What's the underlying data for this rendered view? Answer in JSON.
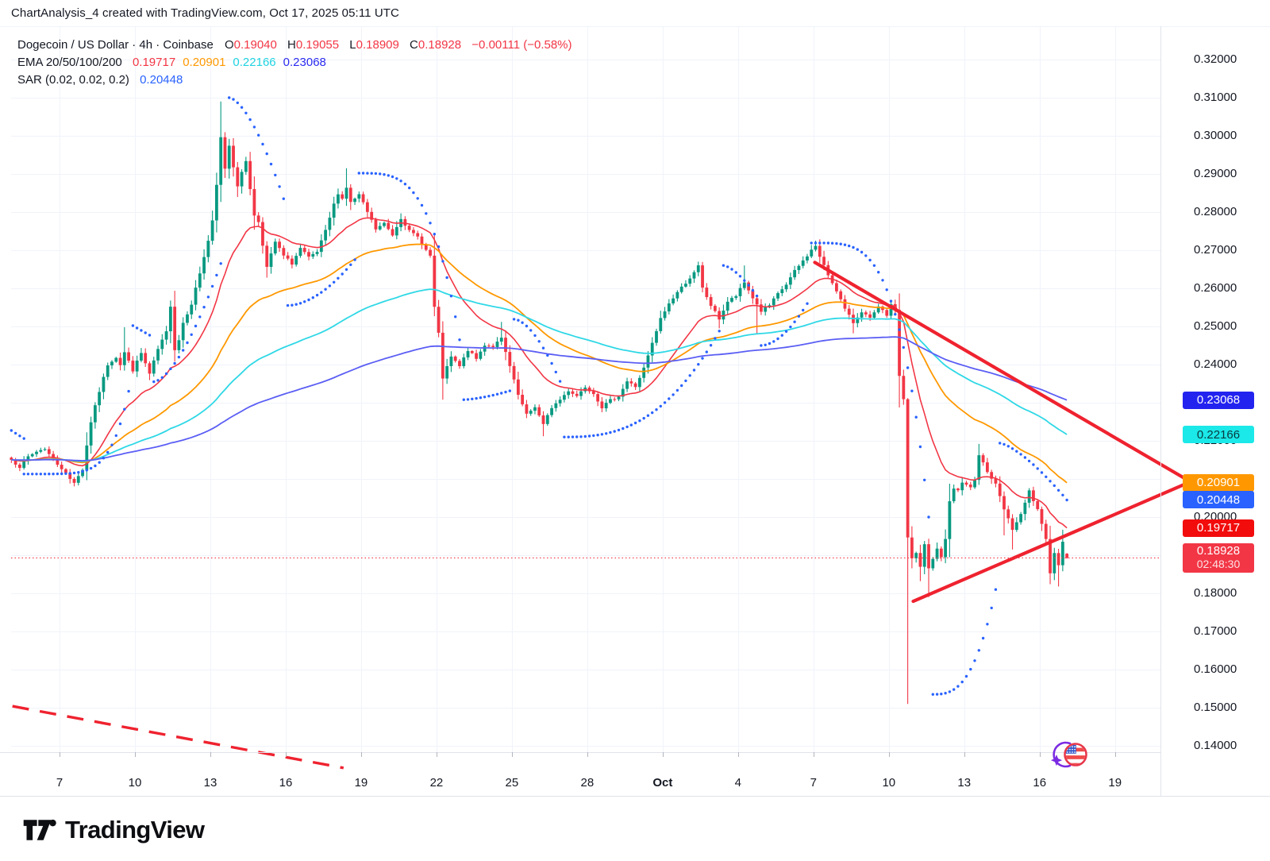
{
  "watermark": "ChartAnalysis_4 created with TradingView.com, Oct 17, 2025 05:11 UTC",
  "legend": {
    "symbol": "Dogecoin / US Dollar · 4h · Coinbase",
    "ohlc": {
      "o_label": "O",
      "o": "0.19040",
      "h_label": "H",
      "h": "0.19055",
      "l_label": "L",
      "l": "0.18909",
      "c_label": "C",
      "c": "0.18928",
      "change": "−0.00111 (−0.58%)"
    },
    "ema": {
      "label": "EMA 20/50/100/200",
      "values": [
        {
          "text": "0.19717",
          "color": "#f23645"
        },
        {
          "text": "0.20901",
          "color": "#ff9800"
        },
        {
          "text": "0.22166",
          "color": "#1fd3e0"
        },
        {
          "text": "0.23068",
          "color": "#2a2af0"
        }
      ]
    },
    "sar": {
      "label": "SAR (0.02, 0.02, 0.2)",
      "value": "0.20448",
      "color": "#2962ff"
    }
  },
  "logo": {
    "text": "TradingView"
  },
  "icons": {
    "event_marker": "us-flag-event-icon",
    "sparkle": "sparkle-icon",
    "logo_mark": "tradingview-logo-icon"
  },
  "colors": {
    "bg": "#ffffff",
    "grid": "#f0f3fa",
    "axis_border": "#e0e3eb",
    "axis_text": "#131722",
    "up": "#089981",
    "down": "#f23645",
    "ema20": "#f23645",
    "ema50": "#ff9800",
    "ema100": "#2fd8e6",
    "ema200": "#5b5ef4",
    "sar": "#2962ff",
    "trend": "#ef222f",
    "last_price_line": "#f23645"
  },
  "y_axis": {
    "ticks": [
      {
        "text": "0.32000",
        "price": 0.32
      },
      {
        "text": "0.31000",
        "price": 0.31
      },
      {
        "text": "0.30000",
        "price": 0.3
      },
      {
        "text": "0.29000",
        "price": 0.29
      },
      {
        "text": "0.28000",
        "price": 0.28
      },
      {
        "text": "0.27000",
        "price": 0.27
      },
      {
        "text": "0.26000",
        "price": 0.26
      },
      {
        "text": "0.25000",
        "price": 0.25
      },
      {
        "text": "0.24000",
        "price": 0.24
      },
      {
        "text": "0.23000",
        "price": 0.23
      },
      {
        "text": "0.22000",
        "price": 0.22
      },
      {
        "text": "0.21000",
        "price": 0.21
      },
      {
        "text": "0.20000",
        "price": 0.2
      },
      {
        "text": "0.19000",
        "price": 0.19
      },
      {
        "text": "0.18000",
        "price": 0.18
      },
      {
        "text": "0.17000",
        "price": 0.17
      },
      {
        "text": "0.16000",
        "price": 0.16
      },
      {
        "text": "0.15000",
        "price": 0.15
      },
      {
        "text": "0.14000",
        "price": 0.14
      }
    ]
  },
  "x_axis": {
    "labels": [
      {
        "text": "7",
        "day": 2
      },
      {
        "text": "10",
        "day": 5
      },
      {
        "text": "13",
        "day": 8
      },
      {
        "text": "16",
        "day": 11
      },
      {
        "text": "19",
        "day": 14
      },
      {
        "text": "22",
        "day": 17
      },
      {
        "text": "25",
        "day": 20
      },
      {
        "text": "28",
        "day": 23
      },
      {
        "text": "Oct",
        "day": 26,
        "bold": true
      },
      {
        "text": "4",
        "day": 29
      },
      {
        "text": "7",
        "day": 32
      },
      {
        "text": "10",
        "day": 35
      },
      {
        "text": "13",
        "day": 38
      },
      {
        "text": "16",
        "day": 41
      },
      {
        "text": "19",
        "day": 44
      }
    ]
  },
  "price_labels": [
    {
      "id": "ema200",
      "text": "0.23068",
      "price": 0.23068,
      "bg": "#2323f0",
      "fg": "#ffffff"
    },
    {
      "id": "ema100",
      "text": "0.22166",
      "price": 0.22166,
      "bg": "#1be8e8",
      "fg": "#093a40"
    },
    {
      "id": "ema50",
      "text": "0.20901",
      "price": 0.20901,
      "bg": "#ff9800",
      "fg": "#ffffff"
    },
    {
      "id": "sar",
      "text": "0.20448",
      "price": 0.20448,
      "bg": "#2962ff",
      "fg": "#ffffff"
    },
    {
      "id": "ema20",
      "text": "0.19717",
      "price": 0.19717,
      "bg": "#f20c0c",
      "fg": "#ffffff"
    },
    {
      "id": "last",
      "text": "0.18928",
      "sub": "02:48:30",
      "price": 0.18928,
      "bg": "#f23645",
      "fg": "#ffffff"
    }
  ],
  "chart_data": {
    "type": "candlestick",
    "title": "Dogecoin / US Dollar",
    "timeframe": "4h",
    "exchange": "Coinbase",
    "current_ohlc": {
      "open": 0.1904,
      "high": 0.19055,
      "low": 0.18909,
      "close": 0.18928,
      "change": -0.00111,
      "change_pct": -0.58
    },
    "countdown": "02:48:30",
    "ylim": [
      0.1383,
      0.3294
    ],
    "date_range": {
      "start": "Sep 5",
      "end": "Oct 19",
      "bars_per_day": 6
    },
    "bars_total": 253,
    "close_keyframes": [
      [
        0,
        0.215
      ],
      [
        2,
        0.2132
      ],
      [
        4,
        0.2158
      ],
      [
        6,
        0.2172
      ],
      [
        8,
        0.218
      ],
      [
        10,
        0.215
      ],
      [
        12,
        0.2128
      ],
      [
        14,
        0.21
      ],
      [
        15,
        0.2092
      ],
      [
        17,
        0.2125
      ],
      [
        19,
        0.225
      ],
      [
        21,
        0.233
      ],
      [
        23,
        0.24
      ],
      [
        25,
        0.242
      ],
      [
        26,
        0.24
      ],
      [
        27,
        0.2432
      ],
      [
        29,
        0.2385
      ],
      [
        31,
        0.243
      ],
      [
        33,
        0.2375
      ],
      [
        35,
        0.244
      ],
      [
        37,
        0.2485
      ],
      [
        38,
        0.2555
      ],
      [
        39,
        0.244
      ],
      [
        40,
        0.2465
      ],
      [
        41,
        0.251
      ],
      [
        43,
        0.256
      ],
      [
        45,
        0.264
      ],
      [
        47,
        0.2725
      ],
      [
        48,
        0.2775
      ],
      [
        49,
        0.287
      ],
      [
        50,
        0.2995
      ],
      [
        51,
        0.2915
      ],
      [
        52,
        0.2975
      ],
      [
        53,
        0.292
      ],
      [
        54,
        0.287
      ],
      [
        56,
        0.2935
      ],
      [
        58,
        0.279
      ],
      [
        59,
        0.2775
      ],
      [
        61,
        0.2655
      ],
      [
        63,
        0.2722
      ],
      [
        65,
        0.2685
      ],
      [
        67,
        0.2665
      ],
      [
        69,
        0.2705
      ],
      [
        71,
        0.268
      ],
      [
        73,
        0.2695
      ],
      [
        75,
        0.275
      ],
      [
        77,
        0.282
      ],
      [
        78,
        0.285
      ],
      [
        79,
        0.2835
      ],
      [
        80,
        0.2865
      ],
      [
        81,
        0.2825
      ],
      [
        83,
        0.2845
      ],
      [
        85,
        0.28
      ],
      [
        87,
        0.2755
      ],
      [
        89,
        0.277
      ],
      [
        91,
        0.274
      ],
      [
        93,
        0.2785
      ],
      [
        95,
        0.275
      ],
      [
        97,
        0.2735
      ],
      [
        99,
        0.27
      ],
      [
        100,
        0.2685
      ],
      [
        101,
        0.255
      ],
      [
        102,
        0.248
      ],
      [
        103,
        0.2365
      ],
      [
        105,
        0.242
      ],
      [
        107,
        0.2395
      ],
      [
        109,
        0.2438
      ],
      [
        111,
        0.2415
      ],
      [
        113,
        0.2452
      ],
      [
        115,
        0.2448
      ],
      [
        117,
        0.2468
      ],
      [
        119,
        0.2395
      ],
      [
        121,
        0.232
      ],
      [
        123,
        0.2268
      ],
      [
        125,
        0.229
      ],
      [
        127,
        0.2242
      ],
      [
        129,
        0.2288
      ],
      [
        131,
        0.2308
      ],
      [
        133,
        0.2332
      ],
      [
        135,
        0.2318
      ],
      [
        137,
        0.2342
      ],
      [
        139,
        0.2325
      ],
      [
        141,
        0.2288
      ],
      [
        143,
        0.2306
      ],
      [
        145,
        0.2318
      ],
      [
        147,
        0.2356
      ],
      [
        149,
        0.2342
      ],
      [
        151,
        0.239
      ],
      [
        153,
        0.2455
      ],
      [
        155,
        0.252
      ],
      [
        157,
        0.256
      ],
      [
        159,
        0.259
      ],
      [
        161,
        0.2615
      ],
      [
        163,
        0.264
      ],
      [
        164,
        0.2658
      ],
      [
        165,
        0.26
      ],
      [
        167,
        0.2555
      ],
      [
        169,
        0.252
      ],
      [
        171,
        0.2565
      ],
      [
        173,
        0.258
      ],
      [
        175,
        0.2615
      ],
      [
        177,
        0.2575
      ],
      [
        179,
        0.254
      ],
      [
        181,
        0.2555
      ],
      [
        183,
        0.2585
      ],
      [
        185,
        0.261
      ],
      [
        187,
        0.2645
      ],
      [
        189,
        0.2672
      ],
      [
        191,
        0.27
      ],
      [
        192,
        0.2712
      ],
      [
        193,
        0.2682
      ],
      [
        195,
        0.2635
      ],
      [
        197,
        0.2595
      ],
      [
        199,
        0.2545
      ],
      [
        201,
        0.251
      ],
      [
        203,
        0.254
      ],
      [
        205,
        0.252
      ],
      [
        207,
        0.255
      ],
      [
        209,
        0.253
      ],
      [
        210,
        0.2555
      ],
      [
        211,
        0.2545
      ],
      [
        212,
        0.237
      ],
      [
        213,
        0.231
      ],
      [
        214,
        0.1945
      ],
      [
        215,
        0.189
      ],
      [
        216,
        0.1905
      ],
      [
        217,
        0.1868
      ],
      [
        218,
        0.1928
      ],
      [
        219,
        0.1865
      ],
      [
        220,
        0.1892
      ],
      [
        221,
        0.1915
      ],
      [
        222,
        0.1895
      ],
      [
        223,
        0.1945
      ],
      [
        224,
        0.204
      ],
      [
        225,
        0.2075
      ],
      [
        226,
        0.207
      ],
      [
        227,
        0.209
      ],
      [
        229,
        0.2075
      ],
      [
        230,
        0.21
      ],
      [
        231,
        0.2165
      ],
      [
        232,
        0.2145
      ],
      [
        233,
        0.2118
      ],
      [
        235,
        0.2085
      ],
      [
        237,
        0.202
      ],
      [
        239,
        0.1968
      ],
      [
        241,
        0.2005
      ],
      [
        243,
        0.2068
      ],
      [
        245,
        0.2018
      ],
      [
        247,
        0.194
      ],
      [
        248,
        0.1856
      ],
      [
        249,
        0.1908
      ],
      [
        250,
        0.1872
      ],
      [
        251,
        0.1938
      ],
      [
        252,
        0.18928
      ]
    ],
    "special_bars": {
      "27": {
        "h": 0.2498
      },
      "38": {
        "h": 0.2568
      },
      "39": {
        "l": 0.2408
      },
      "50": {
        "h": 0.309
      },
      "52": {
        "h": 0.2992
      },
      "56": {
        "h": 0.2945
      },
      "61": {
        "l": 0.2628
      },
      "80": {
        "h": 0.2915
      },
      "103": {
        "l": 0.2308
      },
      "117": {
        "h": 0.2512
      },
      "127": {
        "l": 0.2212
      },
      "164": {
        "h": 0.267
      },
      "169": {
        "l": 0.2495
      },
      "175": {
        "h": 0.266
      },
      "178": {
        "l": 0.2482
      },
      "192": {
        "h": 0.2725
      },
      "201": {
        "l": 0.2482
      },
      "214": {
        "l": 0.151,
        "h": 0.2312
      },
      "217": {
        "l": 0.1832
      },
      "219": {
        "l": 0.179
      },
      "231": {
        "h": 0.2192
      },
      "237": {
        "l": 0.1952
      },
      "239": {
        "l": 0.1915
      },
      "243": {
        "h": 0.2076
      },
      "248": {
        "l": 0.1824
      },
      "250": {
        "l": 0.1818
      },
      "252": {
        "o": 0.1904,
        "h": 0.19055,
        "l": 0.18909,
        "c": 0.18928
      }
    },
    "emas": [
      {
        "period": 20,
        "final": 0.19717,
        "color": "#f23645",
        "w": 1.6
      },
      {
        "period": 50,
        "final": 0.20901,
        "color": "#ff9800",
        "w": 1.8
      },
      {
        "period": 100,
        "final": 0.22166,
        "color": "#2fd8e6",
        "w": 1.8
      },
      {
        "period": 200,
        "final": 0.23068,
        "color": "#5b5ef4",
        "w": 1.8
      }
    ],
    "sar": {
      "settings": [
        0.02,
        0.02,
        0.2
      ],
      "final": 0.20448,
      "segments": [
        [
          "a",
          0,
          3,
          0.2227,
          0.2206,
          1
        ],
        [
          "b",
          3,
          28,
          0.2113,
          0.233,
          6
        ],
        [
          "a",
          29,
          33,
          0.2502,
          0.2477,
          1
        ],
        [
          "b",
          34,
          50,
          0.2355,
          0.2665,
          1.6
        ],
        [
          "a",
          52,
          65,
          0.31,
          0.2835,
          1.6
        ],
        [
          "b",
          66,
          82,
          0.2555,
          0.2675,
          1.8
        ],
        [
          "a",
          83,
          107,
          0.2902,
          0.2465,
          3.5
        ],
        [
          "b",
          108,
          119,
          0.2308,
          0.2331,
          1.5
        ],
        [
          "a",
          120,
          131,
          0.2519,
          0.2356,
          1.7
        ],
        [
          "b",
          132,
          169,
          0.221,
          0.2488,
          2.6
        ],
        [
          "a",
          170,
          178,
          0.266,
          0.258,
          1.5
        ],
        [
          "b",
          179,
          190,
          0.245,
          0.256,
          1.8
        ],
        [
          "a",
          191,
          219,
          0.2719,
          0.2,
          4
        ],
        [
          "b",
          220,
          235,
          0.1535,
          0.181,
          2.8
        ],
        [
          "a",
          236,
          252,
          0.2194,
          0.20448,
          1.4
        ]
      ]
    },
    "trendlines": [
      {
        "name": "descending-resistance",
        "b1": 191.8,
        "p1": 0.2668,
        "b2": 279.9,
        "p2": 0.2103
      },
      {
        "name": "ascending-support",
        "b1": 215.3,
        "p1": 0.1779,
        "b2": 279.9,
        "p2": 0.2085
      }
    ],
    "dashed_line": {
      "name": "lower-dashed-guide",
      "b1": 0.25,
      "p1": 0.1504,
      "b2": 79.3,
      "p2": 0.1342
    },
    "last_price": 0.18928
  }
}
